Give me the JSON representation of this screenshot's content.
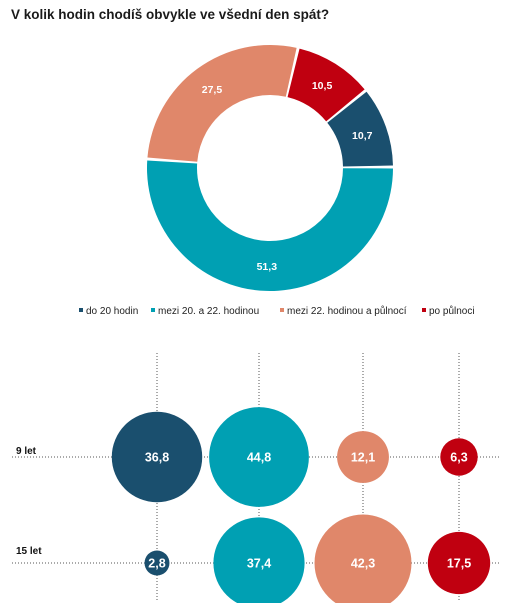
{
  "title": "V kolik hodin chodíš obvykle ve všední den spát?",
  "colors": {
    "do_20": "#1a4f6e",
    "mezi_20_22": "#00a0b3",
    "mezi_22_pulnoc": "#e0876a",
    "po_pulnoci": "#c00010"
  },
  "chart_data": [
    {
      "type": "pie",
      "donut": true,
      "categories": [
        "do 20 hodin",
        "mezi 20. a 22. hodinou",
        "mezi 22. hodinou a půlnocí",
        "po půlnoci"
      ],
      "values": [
        10.7,
        51.3,
        27.5,
        10.5
      ],
      "value_labels": [
        "10,7",
        "51,3",
        "27,5",
        "10,5"
      ],
      "legend_position": "bottom"
    },
    {
      "type": "scatter",
      "subtype": "bubble",
      "rows": [
        "9 let",
        "15 let"
      ],
      "categories": [
        "do 20 hodin",
        "mezi 20. a 22. hodinou",
        "mezi 22. hodinou a půlnocí",
        "po půlnoci"
      ],
      "series": [
        {
          "name": "9 let",
          "values": [
            36.8,
            44.8,
            12.1,
            6.3
          ],
          "value_labels": [
            "36,8",
            "44,8",
            "12,1",
            "6,3"
          ]
        },
        {
          "name": "15 let",
          "values": [
            2.8,
            37.4,
            42.3,
            17.5
          ],
          "value_labels": [
            "2,8",
            "37,4",
            "42,3",
            "17,5"
          ]
        }
      ],
      "grid": true
    }
  ]
}
